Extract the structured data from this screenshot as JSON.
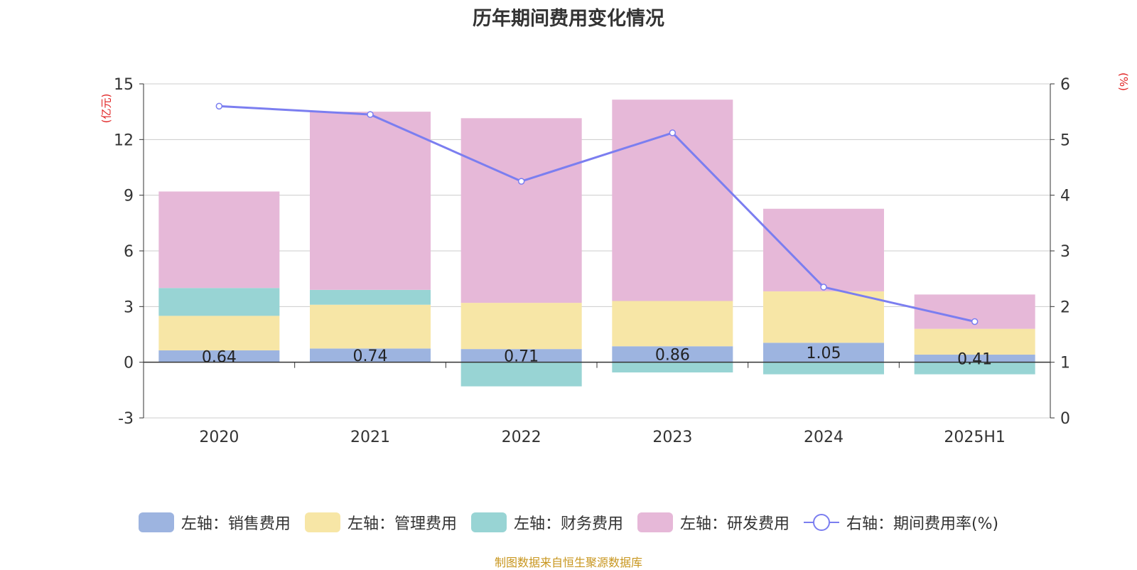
{
  "title": "历年期间费用变化情况",
  "footer": "制图数据来自恒生聚源数据库",
  "left_unit": "(亿元)",
  "right_unit": "(%)",
  "colors": {
    "sales": "#9db4e0",
    "admin": "#f7e6a6",
    "finance": "#98d4d4",
    "rd": "#e6b8d8",
    "rate": "#7b7ef0",
    "axis": "#333333",
    "grid": "#cccccc",
    "unit": "#e02020"
  },
  "legend": [
    {
      "label": "左轴：销售费用",
      "key": "sales"
    },
    {
      "label": "左轴：管理费用",
      "key": "admin"
    },
    {
      "label": "左轴：财务费用",
      "key": "finance"
    },
    {
      "label": "左轴：研发费用",
      "key": "rd"
    },
    {
      "label": "右轴：期间费用率(%)",
      "key": "rate"
    }
  ],
  "chart_data": {
    "type": "bar",
    "stacked": true,
    "categories": [
      "2020",
      "2021",
      "2022",
      "2023",
      "2024",
      "2025H1"
    ],
    "series": [
      {
        "name": "左轴：销售费用",
        "axis": "left",
        "values": [
          0.64,
          0.74,
          0.71,
          0.86,
          1.05,
          0.41
        ],
        "labels": [
          "0.64",
          "0.74",
          "0.71",
          "0.86",
          "1.05",
          "0.41"
        ]
      },
      {
        "name": "左轴：管理费用",
        "axis": "left",
        "values": [
          1.86,
          2.36,
          2.49,
          2.44,
          2.77,
          1.39
        ]
      },
      {
        "name": "左轴：财务费用",
        "axis": "left",
        "values": [
          1.5,
          0.8,
          -1.3,
          -0.55,
          -0.65,
          -0.65
        ]
      },
      {
        "name": "左轴：研发费用",
        "axis": "left",
        "values": [
          5.2,
          9.6,
          9.95,
          10.85,
          4.45,
          1.85
        ]
      },
      {
        "name": "右轴：期间费用率(%)",
        "axis": "right",
        "type": "line",
        "values": [
          5.6,
          5.45,
          4.25,
          5.12,
          2.35,
          1.73
        ]
      }
    ],
    "left_axis": {
      "min": -3,
      "max": 15,
      "ticks": [
        "-3",
        "0",
        "3",
        "6",
        "9",
        "12",
        "15"
      ]
    },
    "right_axis": {
      "min": 0,
      "max": 6,
      "ticks": [
        "0",
        "1",
        "2",
        "3",
        "4",
        "5",
        "6"
      ]
    },
    "grid": true,
    "legend_position": "bottom"
  }
}
